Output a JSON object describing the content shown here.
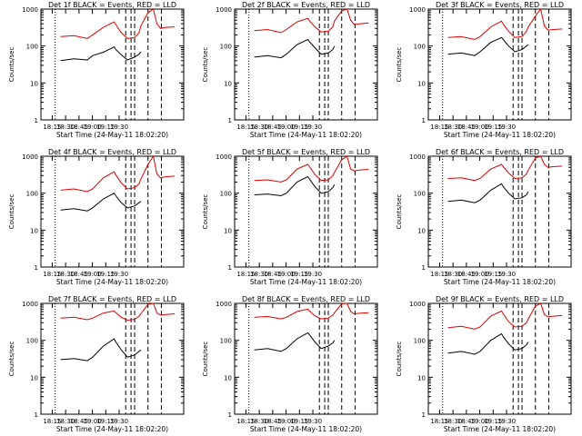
{
  "figure": {
    "ylabel": "Counts/sec",
    "xlabel": "Start Time (24-May-11 18:02:20)",
    "x_ticks": [
      "18:15",
      "18:30",
      "18:45",
      "19:00",
      "19:15",
      "19:30"
    ],
    "y_ticks": [
      "1",
      "10",
      "100",
      "1000"
    ],
    "colors": {
      "events": "#000000",
      "lld": "#dd0000"
    }
  },
  "chart_data": [
    {
      "type": "line",
      "title": "Det 1f BLACK = Events, RED = LLD",
      "xlabel": "Start Time (24-May-11 18:02:20)",
      "ylabel": "Counts/sec",
      "yscale": "log",
      "ylim": [
        1,
        1000
      ],
      "x_minutes": [
        5,
        22,
        37,
        52,
        58,
        70,
        82,
        84,
        90,
        97,
        105,
        110,
        112,
        120,
        126,
        130,
        134,
        140,
        150
      ],
      "series": [
        {
          "name": "Events",
          "values": [
            null,
            40,
            45,
            42,
            55,
            68,
            95,
            80,
            58,
            42,
            50,
            60,
            70,
            null,
            null,
            null,
            null,
            null,
            null
          ]
        },
        {
          "name": "LLD",
          "values": [
            null,
            180,
            190,
            160,
            200,
            320,
            450,
            380,
            230,
            160,
            170,
            230,
            350,
            800,
            1000,
            400,
            300,
            320,
            330
          ]
        }
      ]
    },
    {
      "type": "line",
      "title": "Det 2f BLACK = Events, RED = LLD",
      "xlabel": "Start Time (24-May-11 18:02:20)",
      "ylabel": "Counts/sec",
      "yscale": "log",
      "ylim": [
        1,
        1000
      ],
      "x_minutes": [
        5,
        22,
        37,
        52,
        58,
        70,
        82,
        84,
        90,
        97,
        105,
        110,
        112,
        120,
        126,
        130,
        134,
        140,
        150
      ],
      "series": [
        {
          "name": "Events",
          "values": [
            null,
            50,
            55,
            48,
            60,
            110,
            150,
            130,
            90,
            60,
            65,
            80,
            100,
            null,
            null,
            null,
            null,
            null,
            null
          ]
        },
        {
          "name": "LLD",
          "values": [
            null,
            260,
            280,
            230,
            280,
            450,
            560,
            480,
            330,
            240,
            250,
            330,
            480,
            900,
            1000,
            500,
            380,
            400,
            420
          ]
        }
      ]
    },
    {
      "type": "line",
      "title": "Det 3f BLACK = Events, RED = LLD",
      "xlabel": "Start Time (24-May-11 18:02:20)",
      "ylabel": "Counts/sec",
      "yscale": "log",
      "ylim": [
        1,
        1000
      ],
      "x_minutes": [
        5,
        22,
        37,
        52,
        58,
        70,
        82,
        84,
        90,
        97,
        105,
        110,
        112,
        120,
        126,
        130,
        134,
        140,
        150
      ],
      "series": [
        {
          "name": "Events",
          "values": [
            null,
            60,
            65,
            55,
            70,
            125,
            170,
            150,
            100,
            70,
            80,
            100,
            110,
            null,
            null,
            null,
            null,
            null,
            null
          ]
        },
        {
          "name": "LLD",
          "values": [
            null,
            170,
            180,
            150,
            180,
            330,
            470,
            390,
            250,
            170,
            180,
            250,
            330,
            650,
            1000,
            350,
            270,
            280,
            290
          ]
        }
      ]
    },
    {
      "type": "line",
      "title": "Det 4f BLACK = Events, RED = LLD",
      "xlabel": "Start Time (24-May-11 18:02:20)",
      "ylabel": "Counts/sec",
      "yscale": "log",
      "ylim": [
        1,
        1000
      ],
      "x_minutes": [
        5,
        22,
        37,
        52,
        58,
        70,
        82,
        84,
        90,
        97,
        105,
        110,
        112,
        120,
        126,
        130,
        134,
        140,
        150
      ],
      "series": [
        {
          "name": "Events",
          "values": [
            null,
            35,
            38,
            33,
            40,
            70,
            100,
            85,
            55,
            40,
            45,
            55,
            60,
            null,
            null,
            null,
            null,
            null,
            null
          ]
        },
        {
          "name": "LLD",
          "values": [
            null,
            120,
            130,
            110,
            130,
            260,
            380,
            310,
            190,
            130,
            140,
            180,
            240,
            600,
            1000,
            330,
            260,
            280,
            290
          ]
        }
      ]
    },
    {
      "type": "line",
      "title": "Det 5f BLACK = Events, RED = LLD",
      "xlabel": "Start Time (24-May-11 18:02:20)",
      "ylabel": "Counts/sec",
      "yscale": "log",
      "ylim": [
        1,
        1000
      ],
      "x_minutes": [
        5,
        22,
        37,
        52,
        58,
        70,
        82,
        84,
        90,
        97,
        105,
        110,
        112,
        120,
        126,
        130,
        134,
        140,
        150
      ],
      "series": [
        {
          "name": "Events",
          "values": [
            null,
            90,
            95,
            85,
            100,
            200,
            280,
            240,
            150,
            100,
            110,
            140,
            170,
            null,
            null,
            null,
            null,
            null,
            null
          ]
        },
        {
          "name": "LLD",
          "values": [
            null,
            220,
            230,
            200,
            230,
            450,
            600,
            520,
            320,
            220,
            230,
            300,
            370,
            800,
            1000,
            450,
            400,
            420,
            440
          ]
        }
      ]
    },
    {
      "type": "line",
      "title": "Det 6f BLACK = Events, RED = LLD",
      "xlabel": "Start Time (24-May-11 18:02:20)",
      "ylabel": "Counts/sec",
      "yscale": "log",
      "ylim": [
        1,
        1000
      ],
      "x_minutes": [
        5,
        22,
        37,
        52,
        58,
        70,
        82,
        84,
        90,
        97,
        105,
        110,
        112,
        120,
        126,
        130,
        134,
        140,
        150
      ],
      "series": [
        {
          "name": "Events",
          "values": [
            null,
            60,
            65,
            55,
            65,
            120,
            180,
            150,
            100,
            70,
            75,
            90,
            110,
            null,
            null,
            null,
            null,
            null,
            null
          ]
        },
        {
          "name": "LLD",
          "values": [
            null,
            250,
            260,
            220,
            250,
            450,
            600,
            520,
            350,
            250,
            260,
            330,
            420,
            900,
            1000,
            600,
            500,
            520,
            540
          ]
        }
      ]
    },
    {
      "type": "line",
      "title": "Det 7f BLACK = Events, RED = LLD",
      "xlabel": "Start Time (24-May-11 18:02:20)",
      "ylabel": "Counts/sec",
      "yscale": "log",
      "ylim": [
        1,
        1000
      ],
      "x_minutes": [
        5,
        22,
        37,
        52,
        58,
        70,
        82,
        84,
        90,
        97,
        105,
        110,
        112,
        120,
        126,
        130,
        134,
        140,
        150
      ],
      "series": [
        {
          "name": "Events",
          "values": [
            null,
            30,
            32,
            28,
            35,
            70,
            110,
            90,
            55,
            35,
            40,
            50,
            55,
            null,
            null,
            null,
            null,
            null,
            null
          ]
        },
        {
          "name": "LLD",
          "values": [
            null,
            400,
            420,
            360,
            400,
            550,
            620,
            560,
            420,
            350,
            370,
            450,
            520,
            950,
            1000,
            550,
            480,
            500,
            520
          ]
        }
      ]
    },
    {
      "type": "line",
      "title": "Det 8f BLACK = Events, RED = LLD",
      "xlabel": "Start Time (24-May-11 18:02:20)",
      "ylabel": "Counts/sec",
      "yscale": "log",
      "ylim": [
        1,
        1000
      ],
      "x_minutes": [
        5,
        22,
        37,
        52,
        58,
        70,
        82,
        84,
        90,
        97,
        105,
        110,
        112,
        120,
        126,
        130,
        134,
        140,
        150
      ],
      "series": [
        {
          "name": "Events",
          "values": [
            null,
            55,
            60,
            50,
            60,
            110,
            160,
            140,
            90,
            60,
            70,
            85,
            100,
            null,
            null,
            null,
            null,
            null,
            null
          ]
        },
        {
          "name": "LLD",
          "values": [
            null,
            420,
            440,
            380,
            420,
            600,
            700,
            620,
            460,
            380,
            400,
            480,
            560,
            980,
            1000,
            600,
            520,
            540,
            560
          ]
        }
      ]
    },
    {
      "type": "line",
      "title": "Det 9f BLACK = Events, RED = LLD",
      "xlabel": "Start Time (24-May-11 18:02:20)",
      "ylabel": "Counts/sec",
      "yscale": "log",
      "ylim": [
        1,
        1000
      ],
      "x_minutes": [
        5,
        22,
        37,
        52,
        58,
        70,
        82,
        84,
        90,
        97,
        105,
        110,
        112,
        120,
        126,
        130,
        134,
        140,
        150
      ],
      "series": [
        {
          "name": "Events",
          "values": [
            null,
            45,
            50,
            42,
            50,
            100,
            150,
            125,
            80,
            55,
            60,
            75,
            90,
            null,
            null,
            null,
            null,
            null,
            null
          ]
        },
        {
          "name": "LLD",
          "values": [
            null,
            220,
            240,
            200,
            230,
            450,
            620,
            520,
            320,
            230,
            240,
            300,
            380,
            850,
            1000,
            500,
            430,
            450,
            470
          ]
        }
      ]
    }
  ]
}
